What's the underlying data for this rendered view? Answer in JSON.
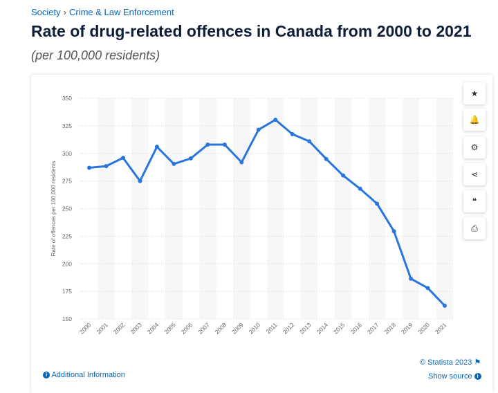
{
  "breadcrumb": {
    "items": [
      "Society",
      "Crime & Law Enforcement"
    ],
    "separator": "›"
  },
  "title": "Rate of drug-related offences in Canada from 2000 to 2021",
  "subtitle": "(per 100,000 residents)",
  "toolbar": [
    {
      "icon": "star-icon",
      "glyph": "★"
    },
    {
      "icon": "bell-icon",
      "glyph": "🔔"
    },
    {
      "icon": "gear-icon",
      "glyph": "⚙"
    },
    {
      "icon": "share-icon",
      "glyph": "⋖"
    },
    {
      "icon": "quote-icon",
      "glyph": "❝"
    },
    {
      "icon": "print-icon",
      "glyph": "⎙"
    }
  ],
  "footer": {
    "copyright": "© Statista 2023",
    "additional_info": "Additional Information",
    "show_source": "Show source",
    "info_glyph": "i"
  },
  "chart_data": {
    "type": "line",
    "title": "",
    "xlabel": "",
    "ylabel": "Rate of offences per 100,000 residents",
    "ylim": [
      150,
      350
    ],
    "yticks": [
      150,
      175,
      200,
      225,
      250,
      275,
      300,
      325,
      350
    ],
    "grid": true,
    "line_color": "#2876dd",
    "categories": [
      "2000",
      "2001",
      "2002",
      "2003",
      "2004",
      "2005",
      "2006",
      "2007",
      "2008",
      "2009",
      "2010",
      "2011",
      "2012",
      "2013",
      "2014",
      "2015",
      "2016",
      "2017",
      "2018",
      "2019",
      "2020",
      "2021"
    ],
    "values": [
      287,
      288.5,
      296,
      275,
      306,
      290.5,
      295.5,
      308,
      308,
      292,
      321.5,
      330.5,
      317.5,
      311,
      295,
      280,
      268,
      254.5,
      229.5,
      186.5,
      178,
      162
    ]
  }
}
